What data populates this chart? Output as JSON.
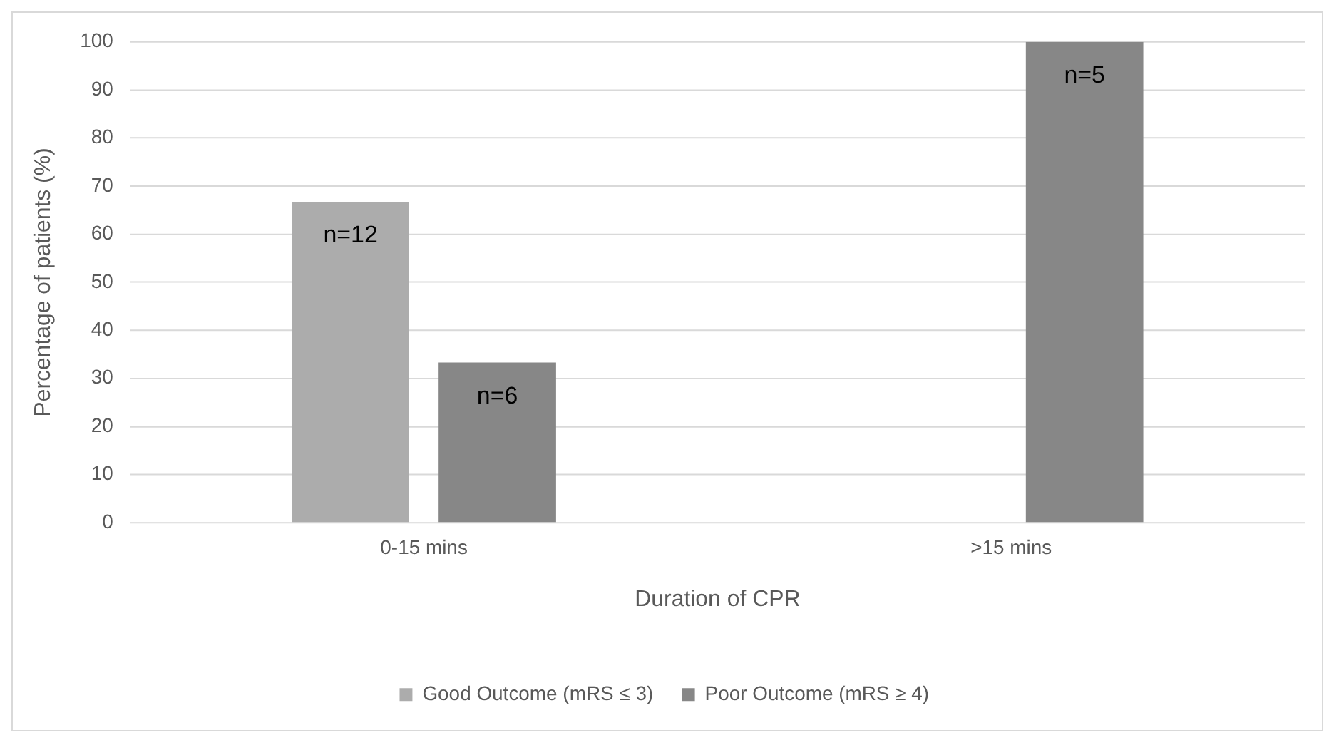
{
  "chart_data": {
    "type": "bar",
    "xlabel": "Duration of CPR",
    "ylabel": "Percentage of patients (%)",
    "categories": [
      "0-15 mins",
      ">15 mins"
    ],
    "series": [
      {
        "name": "Good Outcome (mRS ≤ 3)",
        "color": "#acacac",
        "values": [
          66.7,
          0
        ]
      },
      {
        "name": "Poor Outcome (mRS ≥ 4)",
        "color": "#878787",
        "values": [
          33.3,
          100
        ]
      }
    ],
    "annotations": [
      "n=12",
      "n=6",
      "n=5"
    ],
    "ylim": [
      0,
      100
    ],
    "yticks": [
      0,
      10,
      20,
      30,
      40,
      50,
      60,
      70,
      80,
      90,
      100
    ],
    "grid": "y",
    "legend": "bottom"
  }
}
